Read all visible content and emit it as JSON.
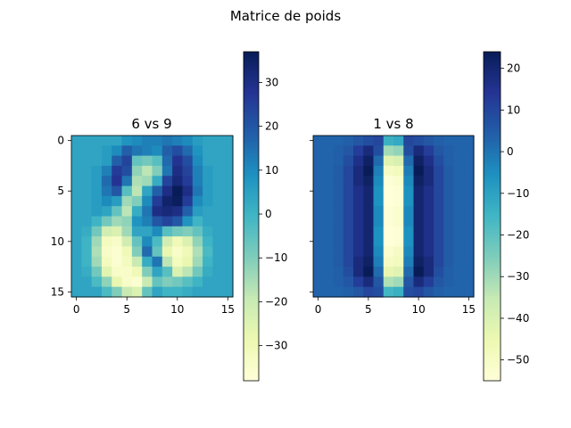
{
  "figure": {
    "title": "Matrice de poids"
  },
  "colormap": [
    "#ffffd9",
    "#edf8b1",
    "#c7e9b4",
    "#7fcdbb",
    "#41b6c4",
    "#1d91c0",
    "#225ea8",
    "#253494",
    "#081d58"
  ],
  "chart_data": [
    {
      "type": "heatmap",
      "title": "6 vs 9",
      "rows": 16,
      "cols": 16,
      "xticks": [
        0,
        5,
        10,
        15
      ],
      "yticks": [
        0,
        5,
        10,
        15
      ],
      "clim": [
        -38,
        37
      ],
      "colorbar_ticks": [
        30,
        20,
        10,
        0,
        -10,
        -20,
        -30
      ],
      "colorbar_labels": [
        "30",
        "20",
        "10",
        "0",
        "−10",
        "−20",
        "−30"
      ],
      "values": [
        [
          4,
          4,
          4,
          4,
          4,
          8,
          10,
          12,
          12,
          14,
          12,
          10,
          6,
          4,
          4,
          4
        ],
        [
          4,
          4,
          4,
          6,
          10,
          18,
          14,
          12,
          10,
          18,
          22,
          16,
          8,
          4,
          4,
          4
        ],
        [
          4,
          4,
          4,
          6,
          18,
          24,
          -6,
          -8,
          -4,
          16,
          28,
          22,
          10,
          4,
          4,
          4
        ],
        [
          4,
          4,
          6,
          12,
          26,
          22,
          -12,
          -18,
          -10,
          14,
          30,
          24,
          12,
          6,
          4,
          4
        ],
        [
          4,
          4,
          6,
          16,
          28,
          14,
          -16,
          -14,
          2,
          24,
          32,
          26,
          12,
          6,
          4,
          4
        ],
        [
          4,
          4,
          6,
          14,
          20,
          -4,
          -18,
          4,
          18,
          30,
          37,
          30,
          14,
          6,
          4,
          4
        ],
        [
          4,
          4,
          6,
          10,
          6,
          -14,
          -10,
          10,
          26,
          34,
          36,
          26,
          10,
          6,
          4,
          4
        ],
        [
          4,
          4,
          6,
          4,
          -6,
          -18,
          2,
          14,
          30,
          32,
          30,
          18,
          6,
          4,
          4,
          4
        ],
        [
          4,
          4,
          0,
          -8,
          -14,
          -12,
          8,
          12,
          20,
          24,
          20,
          8,
          0,
          4,
          4,
          4
        ],
        [
          4,
          2,
          -8,
          -22,
          -24,
          -14,
          4,
          4,
          10,
          -4,
          -8,
          -10,
          -6,
          2,
          4,
          4
        ],
        [
          4,
          0,
          -14,
          -32,
          -34,
          -22,
          -6,
          10,
          -2,
          -22,
          -30,
          -24,
          -12,
          0,
          4,
          4
        ],
        [
          4,
          0,
          -16,
          -34,
          -36,
          -30,
          -10,
          16,
          -6,
          -28,
          -34,
          -30,
          -16,
          -2,
          4,
          4
        ],
        [
          4,
          0,
          -14,
          -32,
          -36,
          -32,
          -20,
          2,
          14,
          -18,
          -32,
          -28,
          -14,
          0,
          4,
          4
        ],
        [
          4,
          2,
          -8,
          -26,
          -34,
          -34,
          -30,
          -10,
          4,
          -4,
          -24,
          -18,
          -8,
          2,
          4,
          4
        ],
        [
          4,
          4,
          -2,
          -12,
          -28,
          -34,
          -36,
          -20,
          -6,
          -10,
          -8,
          -4,
          0,
          4,
          4,
          4
        ],
        [
          4,
          4,
          4,
          -2,
          -10,
          -20,
          -24,
          -6,
          4,
          0,
          0,
          2,
          4,
          4,
          4,
          4
        ]
      ]
    },
    {
      "type": "heatmap",
      "title": "1 vs 8",
      "rows": 16,
      "cols": 16,
      "xticks": [
        0,
        5,
        10,
        15
      ],
      "yticks": [
        0,
        5,
        10,
        15
      ],
      "clim": [
        -55,
        24
      ],
      "colorbar_ticks": [
        20,
        10,
        0,
        -10,
        -20,
        -30,
        -40,
        -50
      ],
      "colorbar_labels": [
        "20",
        "10",
        "0",
        "−10",
        "−20",
        "−30",
        "−40",
        "−50"
      ],
      "values": [
        [
          3,
          3,
          3,
          4,
          6,
          8,
          10,
          -14,
          -12,
          10,
          8,
          6,
          4,
          3,
          3,
          3
        ],
        [
          3,
          3,
          4,
          6,
          12,
          18,
          8,
          -30,
          -28,
          8,
          18,
          12,
          6,
          4,
          3,
          3
        ],
        [
          3,
          3,
          4,
          8,
          16,
          22,
          2,
          -42,
          -40,
          2,
          22,
          16,
          8,
          4,
          3,
          3
        ],
        [
          3,
          3,
          5,
          10,
          18,
          24,
          -2,
          -50,
          -48,
          -2,
          24,
          18,
          10,
          5,
          3,
          3
        ],
        [
          3,
          3,
          5,
          10,
          18,
          22,
          -4,
          -54,
          -52,
          -4,
          22,
          18,
          10,
          5,
          3,
          3
        ],
        [
          3,
          3,
          5,
          10,
          16,
          20,
          -6,
          -55,
          -54,
          -6,
          20,
          16,
          10,
          5,
          3,
          3
        ],
        [
          3,
          3,
          5,
          10,
          16,
          20,
          -6,
          -55,
          -54,
          -6,
          20,
          16,
          10,
          5,
          3,
          3
        ],
        [
          3,
          3,
          5,
          10,
          16,
          20,
          -4,
          -54,
          -52,
          -4,
          20,
          16,
          10,
          5,
          3,
          3
        ],
        [
          3,
          3,
          5,
          10,
          16,
          20,
          -4,
          -54,
          -52,
          -4,
          20,
          16,
          10,
          5,
          3,
          3
        ],
        [
          3,
          3,
          5,
          10,
          16,
          20,
          -6,
          -55,
          -54,
          -6,
          20,
          16,
          10,
          5,
          3,
          3
        ],
        [
          3,
          3,
          5,
          10,
          16,
          20,
          -6,
          -55,
          -54,
          -6,
          20,
          16,
          10,
          5,
          3,
          3
        ],
        [
          3,
          3,
          5,
          10,
          16,
          20,
          -4,
          -52,
          -50,
          -4,
          20,
          16,
          10,
          5,
          3,
          3
        ],
        [
          3,
          3,
          5,
          10,
          18,
          22,
          -2,
          -50,
          -48,
          -2,
          22,
          18,
          10,
          5,
          3,
          3
        ],
        [
          3,
          3,
          4,
          8,
          18,
          24,
          2,
          -44,
          -42,
          2,
          24,
          18,
          8,
          4,
          3,
          3
        ],
        [
          3,
          3,
          4,
          6,
          12,
          18,
          6,
          -32,
          -30,
          6,
          18,
          12,
          6,
          4,
          3,
          3
        ],
        [
          3,
          3,
          3,
          4,
          6,
          10,
          8,
          -16,
          -14,
          8,
          10,
          6,
          4,
          3,
          3,
          3
        ]
      ]
    }
  ]
}
